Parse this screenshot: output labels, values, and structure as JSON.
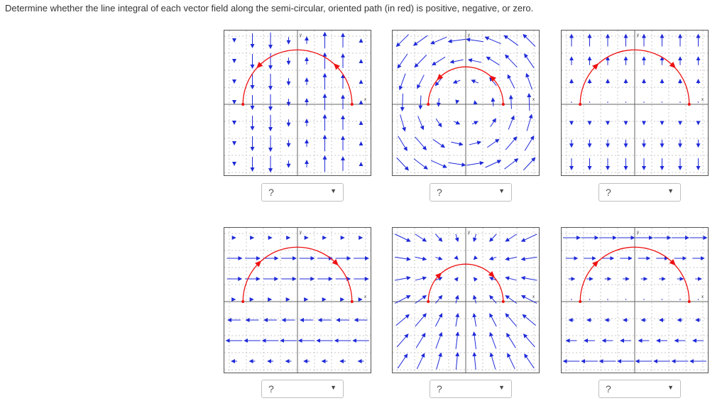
{
  "question": "Determine whether the line integral of each vector field along the semi-circular, oriented path (in red) is positive, negative, or zero.",
  "colors": {
    "path": "#ee1111",
    "arrows": "#1f2ad8",
    "axes": "#666666",
    "grid": "#c8c8c8"
  },
  "axis_labels": {
    "x": "x",
    "y": "y"
  },
  "plots": [
    {
      "field": "vertical-alternating",
      "path_direction": "counterclockwise",
      "answer": "?"
    },
    {
      "field": "rotation",
      "path_direction": "counterclockwise",
      "answer": "?"
    },
    {
      "field": "vertical-downward-upward",
      "path_direction": "clockwise",
      "answer": "?"
    },
    {
      "field": "horizontal-alternating",
      "path_direction": "clockwise",
      "answer": "?"
    },
    {
      "field": "radial-inward",
      "path_direction": "clockwise",
      "answer": "?"
    },
    {
      "field": "horizontal-rightward-leftward",
      "path_direction": "clockwise",
      "answer": "?"
    }
  ],
  "dropdown_caret": "▼"
}
